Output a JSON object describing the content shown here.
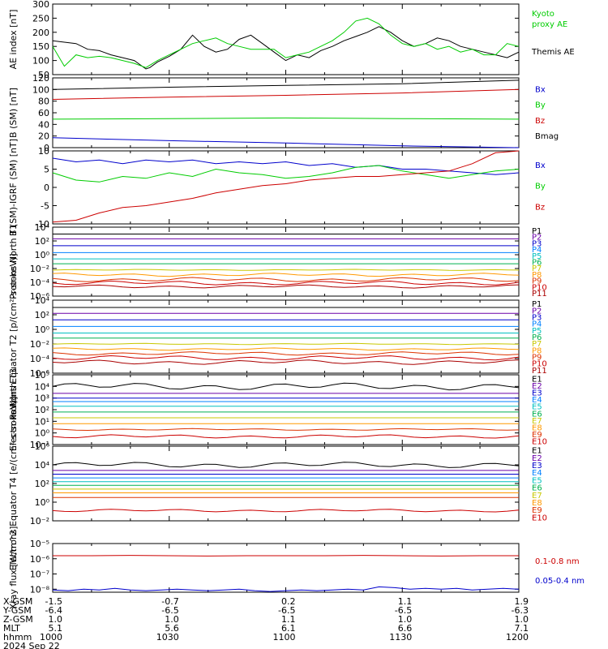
{
  "chart_data": [
    {
      "type": "line",
      "ylabel": "AE index [nT]",
      "ylim": [
        50,
        300
      ],
      "yticks": [
        50,
        100,
        150,
        200,
        250,
        300
      ],
      "legend": [
        {
          "name": "Kyoto proxy AE",
          "color": "#00cc00"
        },
        {
          "name": "Themis AE",
          "color": "#000000"
        }
      ],
      "series": [
        {
          "name": "Themis AE",
          "color": "#000000",
          "x": [
            0,
            3,
            6,
            9,
            12,
            15,
            18,
            21,
            24,
            25,
            27,
            30,
            33,
            36,
            39,
            42,
            45,
            48,
            51,
            54,
            57,
            60,
            63,
            66,
            69,
            72,
            75,
            78,
            81,
            84,
            87,
            90,
            93,
            96,
            99,
            102,
            105,
            108,
            111,
            114,
            117,
            120
          ],
          "y": [
            170,
            165,
            160,
            140,
            135,
            120,
            110,
            100,
            70,
            75,
            95,
            115,
            140,
            190,
            150,
            130,
            140,
            175,
            190,
            160,
            130,
            100,
            120,
            110,
            135,
            150,
            170,
            185,
            200,
            220,
            200,
            170,
            150,
            160,
            180,
            170,
            150,
            140,
            130,
            120,
            110,
            130
          ]
        },
        {
          "name": "Kyoto proxy AE",
          "color": "#00cc00",
          "x": [
            0,
            3,
            6,
            9,
            12,
            15,
            18,
            21,
            24,
            27,
            30,
            33,
            36,
            39,
            42,
            45,
            48,
            51,
            54,
            57,
            60,
            63,
            66,
            69,
            72,
            75,
            78,
            81,
            84,
            87,
            90,
            93,
            96,
            99,
            102,
            105,
            108,
            111,
            114,
            117,
            120
          ],
          "y": [
            150,
            80,
            120,
            110,
            115,
            110,
            100,
            90,
            75,
            100,
            120,
            140,
            160,
            170,
            180,
            160,
            150,
            140,
            140,
            140,
            110,
            120,
            130,
            150,
            170,
            200,
            240,
            250,
            230,
            190,
            160,
            150,
            160,
            140,
            150,
            130,
            140,
            120,
            120,
            160,
            150
          ]
        }
      ]
    },
    {
      "type": "line",
      "ylabel": "B (SM) [nT]",
      "ylim": [
        0,
        120
      ],
      "yticks": [
        0,
        20,
        40,
        60,
        80,
        100,
        120
      ],
      "legend": [
        {
          "name": "Bx",
          "color": "#0000cc"
        },
        {
          "name": "By",
          "color": "#00cc00"
        },
        {
          "name": "Bz",
          "color": "#cc0000"
        },
        {
          "name": "Bmag",
          "color": "#000000"
        }
      ],
      "series": [
        {
          "name": "Bmag",
          "color": "#000000",
          "x": [
            0,
            30,
            60,
            90,
            120
          ],
          "y": [
            100,
            104,
            107,
            110,
            116
          ]
        },
        {
          "name": "Bz",
          "color": "#cc0000",
          "x": [
            0,
            30,
            60,
            90,
            120
          ],
          "y": [
            83,
            87,
            90,
            94,
            100
          ]
        },
        {
          "name": "By",
          "color": "#00cc00",
          "x": [
            0,
            30,
            60,
            90,
            120
          ],
          "y": [
            49,
            50,
            51,
            50,
            49
          ]
        },
        {
          "name": "Bx",
          "color": "#0000cc",
          "x": [
            0,
            30,
            60,
            90,
            120
          ],
          "y": [
            17,
            12,
            8,
            3,
            -3
          ]
        }
      ]
    },
    {
      "type": "line",
      "ylabel": "B (SM)-IGRF (SM) [nT]",
      "ylim": [
        -10,
        10
      ],
      "yticks": [
        -10,
        -5,
        0,
        5,
        10
      ],
      "legend": [
        {
          "name": "Bx",
          "color": "#0000cc"
        },
        {
          "name": "By",
          "color": "#00cc00"
        },
        {
          "name": "Bz",
          "color": "#cc0000"
        }
      ],
      "series": [
        {
          "name": "Bx",
          "color": "#0000cc",
          "x": [
            0,
            6,
            12,
            18,
            24,
            30,
            36,
            42,
            48,
            54,
            60,
            66,
            72,
            78,
            84,
            90,
            96,
            102,
            108,
            114,
            120
          ],
          "y": [
            8,
            7,
            7.5,
            6.5,
            7.5,
            7,
            7.5,
            6.5,
            7,
            6.5,
            7,
            6,
            6.5,
            5.5,
            6,
            5,
            5,
            4.5,
            4,
            3.5,
            4
          ]
        },
        {
          "name": "By",
          "color": "#00cc00",
          "x": [
            0,
            6,
            12,
            18,
            24,
            30,
            36,
            42,
            48,
            54,
            60,
            66,
            72,
            78,
            84,
            90,
            96,
            102,
            108,
            114,
            120
          ],
          "y": [
            4,
            2,
            1.5,
            3,
            2.5,
            4,
            3,
            5,
            4,
            3.5,
            2.5,
            3,
            4,
            5.5,
            6,
            4.5,
            3.5,
            2.5,
            3.5,
            4.5,
            5
          ]
        },
        {
          "name": "Bz",
          "color": "#cc0000",
          "x": [
            0,
            6,
            12,
            18,
            24,
            30,
            36,
            42,
            48,
            54,
            60,
            66,
            72,
            78,
            84,
            90,
            96,
            102,
            108,
            114,
            120
          ],
          "y": [
            -9.5,
            -9,
            -7,
            -5.5,
            -5,
            -4,
            -3,
            -1.5,
            -0.5,
            0.5,
            1,
            2,
            2.5,
            3,
            3,
            3.5,
            4,
            4.5,
            6.5,
            9.5,
            10
          ]
        }
      ]
    },
    {
      "type": "line",
      "ylabel": "Protons North T1",
      "yscale": "log",
      "ylim_exp": [
        -6,
        4
      ],
      "ytick_labels": [
        "10⁻⁶",
        "10⁻⁴",
        "10⁻²",
        "10⁰",
        "10²",
        "10⁴"
      ],
      "ytick_exps": [
        -6,
        -4,
        -2,
        0,
        2,
        4
      ],
      "legend": [
        {
          "name": "P1",
          "color": "#000000"
        },
        {
          "name": "P2",
          "color": "#6a00a8"
        },
        {
          "name": "P3",
          "color": "#0000cc"
        },
        {
          "name": "P4",
          "color": "#0080ff"
        },
        {
          "name": "P5",
          "color": "#00c0c0"
        },
        {
          "name": "P6",
          "color": "#00b050"
        },
        {
          "name": "P7",
          "color": "#c8c800"
        },
        {
          "name": "P8",
          "color": "#ff9900"
        },
        {
          "name": "P9",
          "color": "#dd3300"
        },
        {
          "name": "P10",
          "color": "#cc0000"
        },
        {
          "name": "P11",
          "color": "#aa0000"
        }
      ],
      "levels": [
        3.0,
        2.3,
        1.3,
        0.3,
        -0.6,
        -1.3,
        -2.2,
        -2.9,
        -3.6,
        -4.1,
        -4.6
      ],
      "wiggle": [
        0,
        0,
        0,
        0,
        0,
        0,
        0.05,
        0.15,
        0.2,
        0.2,
        0.15
      ]
    },
    {
      "type": "line",
      "ylabel": "Protons Equator T2 [p/(cm²-s-sr-keV)]",
      "yscale": "log",
      "ylim_exp": [
        -6,
        4
      ],
      "ytick_labels": [
        "10⁻⁶",
        "10⁻⁴",
        "10⁻²",
        "10⁰",
        "10²",
        "10⁴"
      ],
      "ytick_exps": [
        -6,
        -4,
        -2,
        0,
        2,
        4
      ],
      "legend": [
        {
          "name": "P1",
          "color": "#000000"
        },
        {
          "name": "P2",
          "color": "#6a00a8"
        },
        {
          "name": "P3",
          "color": "#0000cc"
        },
        {
          "name": "P4",
          "color": "#0080ff"
        },
        {
          "name": "P5",
          "color": "#00c0c0"
        },
        {
          "name": "P6",
          "color": "#00b050"
        },
        {
          "name": "P7",
          "color": "#c8c800"
        },
        {
          "name": "P8",
          "color": "#ff9900"
        },
        {
          "name": "P9",
          "color": "#dd3300"
        },
        {
          "name": "P10",
          "color": "#cc0000"
        },
        {
          "name": "P11",
          "color": "#aa0000"
        }
      ],
      "levels": [
        3.0,
        2.2,
        1.3,
        0.4,
        -0.5,
        -1.2,
        -2.0,
        -2.7,
        -3.3,
        -3.9,
        -4.5
      ],
      "wiggle": [
        0,
        0,
        0,
        0,
        0,
        0,
        0.05,
        0.1,
        0.15,
        0.2,
        0.2
      ]
    },
    {
      "type": "line",
      "ylabel": "Electrons North T3",
      "yscale": "log",
      "ylim_exp": [
        -1,
        5
      ],
      "ytick_labels": [
        "10⁻¹",
        "10⁰",
        "10¹",
        "10²",
        "10³",
        "10⁴",
        "10⁵"
      ],
      "ytick_exps": [
        -1,
        0,
        1,
        2,
        3,
        4,
        5
      ],
      "legend": [
        {
          "name": "E1",
          "color": "#000000"
        },
        {
          "name": "E2",
          "color": "#6a00a8"
        },
        {
          "name": "E3",
          "color": "#0000cc"
        },
        {
          "name": "E4",
          "color": "#0080ff"
        },
        {
          "name": "E5",
          "color": "#00c0c0"
        },
        {
          "name": "E6",
          "color": "#00b050"
        },
        {
          "name": "E7",
          "color": "#c8c800"
        },
        {
          "name": "E8",
          "color": "#ff9900"
        },
        {
          "name": "E9",
          "color": "#dd3300"
        },
        {
          "name": "E10",
          "color": "#cc0000"
        }
      ],
      "levels": [
        4.0,
        3.4,
        3.0,
        2.7,
        2.3,
        1.8,
        1.3,
        0.8,
        0.3,
        -0.3
      ],
      "wiggle": [
        0.2,
        0,
        0,
        0,
        0,
        0,
        0,
        0,
        0.05,
        0.1
      ]
    },
    {
      "type": "line",
      "ylabel": "Electrons Equator T4 [e/(cm²-s-sr-keV)]",
      "yscale": "log",
      "ylim_exp": [
        -2,
        6
      ],
      "ytick_labels": [
        "10⁻²",
        "10⁰",
        "10²",
        "10⁴",
        "10⁶"
      ],
      "ytick_exps": [
        -2,
        0,
        2,
        4,
        6
      ],
      "legend": [
        {
          "name": "E1",
          "color": "#000000"
        },
        {
          "name": "E2",
          "color": "#6a00a8"
        },
        {
          "name": "E3",
          "color": "#0000cc"
        },
        {
          "name": "E4",
          "color": "#0080ff"
        },
        {
          "name": "E5",
          "color": "#00c0c0"
        },
        {
          "name": "E6",
          "color": "#00b050"
        },
        {
          "name": "E7",
          "color": "#c8c800"
        },
        {
          "name": "E8",
          "color": "#ff9900"
        },
        {
          "name": "E9",
          "color": "#dd3300"
        },
        {
          "name": "E10",
          "color": "#cc0000"
        }
      ],
      "levels": [
        4.0,
        3.4,
        3.0,
        2.6,
        2.2,
        1.8,
        1.4,
        1.0,
        0.5,
        -0.9
      ],
      "wiggle": [
        0.2,
        0,
        0,
        0,
        0,
        0,
        0,
        0,
        0,
        0.1
      ]
    },
    {
      "type": "line",
      "ylabel": "Xray flux [W/m^2]",
      "yscale": "log",
      "ylim_exp": [
        -8.2,
        -5
      ],
      "ytick_labels": [
        "10⁻⁸",
        "10⁻⁷",
        "10⁻⁶",
        "10⁻⁵"
      ],
      "ytick_exps": [
        -8,
        -7,
        -6,
        -5
      ],
      "legend": [
        {
          "name": "0.1-0.8 nm",
          "color": "#cc0000"
        },
        {
          "name": "0.05-0.4 nm",
          "color": "#0000cc"
        }
      ],
      "series": [
        {
          "name": "0.1-0.8 nm",
          "color": "#cc0000",
          "x": [
            0,
            10,
            20,
            30,
            40,
            50,
            60,
            70,
            80,
            90,
            100,
            110,
            120
          ],
          "y_exp": [
            -5.8,
            -5.8,
            -5.78,
            -5.8,
            -5.82,
            -5.8,
            -5.8,
            -5.8,
            -5.78,
            -5.8,
            -5.82,
            -5.8,
            -5.8
          ]
        },
        {
          "name": "0.05-0.4 nm",
          "color": "#0000cc",
          "x": [
            0,
            4,
            8,
            12,
            16,
            20,
            24,
            28,
            32,
            36,
            40,
            44,
            48,
            52,
            56,
            60,
            64,
            68,
            72,
            76,
            80,
            84,
            88,
            92,
            96,
            100,
            104,
            108,
            112,
            116,
            120
          ],
          "y_exp": [
            -8.05,
            -8.1,
            -8.0,
            -8.05,
            -7.95,
            -8.05,
            -8.1,
            -8.05,
            -8.0,
            -8.05,
            -8.1,
            -8.05,
            -8.0,
            -8.1,
            -8.15,
            -8.1,
            -8.05,
            -8.1,
            -8.05,
            -8.0,
            -8.05,
            -7.85,
            -7.9,
            -8.0,
            -7.95,
            -8.0,
            -7.95,
            -8.05,
            -8.0,
            -7.95,
            -8.0
          ]
        }
      ]
    }
  ],
  "x_axis": {
    "rows": [
      {
        "label": "X-GSM",
        "values": [
          "-1.5",
          "-0.7",
          "0.2",
          "1.1",
          "1.9"
        ]
      },
      {
        "label": "Y-GSM",
        "values": [
          "-6.4",
          "-6.5",
          "-6.5",
          "-6.5",
          "-6.3"
        ]
      },
      {
        "label": "Z-GSM",
        "values": [
          "1.0",
          "1.0",
          "1.1",
          "1.0",
          "1.0"
        ]
      },
      {
        "label": "MLT",
        "values": [
          "5.1",
          "5.6",
          "6.1",
          "6.6",
          "7.1"
        ]
      },
      {
        "label": "hhmm",
        "values": [
          "1000",
          "1030",
          "1100",
          "1130",
          "1200"
        ]
      }
    ],
    "date": "2024 Sep 22"
  }
}
